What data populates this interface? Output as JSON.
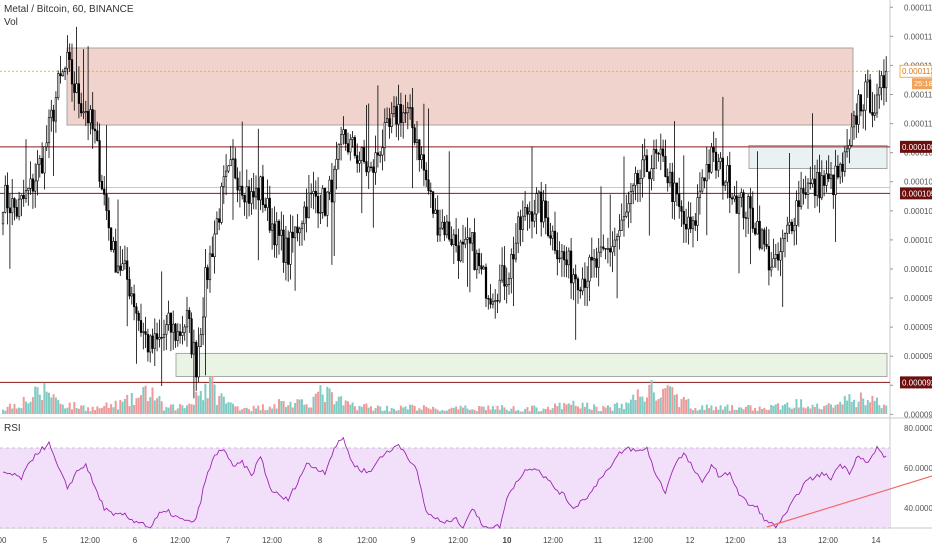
{
  "header": {
    "title": "Metal / Bitcoin, 60, BINANCE",
    "vol_label": "Vol"
  },
  "rsi": {
    "label": "RSI"
  },
  "colors": {
    "up": "#26a69a",
    "down": "#ef5350",
    "candle": "#000000",
    "vol_up": "#80cbc4",
    "vol_down": "#ef9a9a",
    "supply_zone": "#efcbc4",
    "demand_zone": "#e6f2e1",
    "level_line": "#8b1a1a",
    "level_tag_bg": "#6b0f0f",
    "price_line": "#ff9800",
    "price_tag_bg": "#f0a35c",
    "rsi_band": "#f2e0fb",
    "rsi_line": "#9c27b0",
    "trendline": "#f06b6b",
    "target_box": "#e6eef0"
  },
  "chart_data": [
    {
      "type": "candlestick",
      "title": "Metal / Bitcoin, 60, BINANCE",
      "ylim": [
        8.975e-05,
        0.0001185
      ],
      "yticks": [
        "0.0001180",
        "0.0001160",
        "0.0001140",
        "0.0001120",
        "0.0001100",
        "0.0001080",
        "0.0001060",
        "0.0001040",
        "0.0001020",
        "0.0001000",
        "0.0000980",
        "0.0000960",
        "0.0000940",
        "0.0000920",
        "0.0000900"
      ],
      "xticks": [
        "00",
        "5",
        "12:00",
        "6",
        "12:00",
        "7",
        "12:00",
        "8",
        "12:00",
        "9",
        "12:00",
        "10",
        "12:00",
        "11",
        "12:00",
        "12",
        "12:00",
        "13",
        "12:00",
        "14"
      ],
      "last_price": "0.0001136",
      "countdown": "25:18",
      "levels": [
        {
          "label": "0.0001084",
          "value": 0.0001084
        },
        {
          "label": "0.0001052",
          "value": 0.0001052
        },
        {
          "label": "0.0000922",
          "value": 9.22e-05
        }
      ],
      "zones": [
        {
          "name": "supply",
          "from": 0.0001099,
          "to": 0.0001152
        },
        {
          "name": "demand",
          "from": 9.26e-05,
          "to": 9.42e-05
        },
        {
          "name": "target",
          "from": 0.0001069,
          "to": 0.0001085
        }
      ],
      "close_anchors": [
        [
          0,
          0.000105
        ],
        [
          6,
          0.000104
        ],
        [
          12,
          0.0001055
        ],
        [
          18,
          0.000108
        ],
        [
          24,
          0.0001125
        ],
        [
          28,
          0.000114
        ],
        [
          32,
          0.000112
        ],
        [
          36,
          0.000111
        ],
        [
          40,
          0.000109
        ],
        [
          44,
          0.000105
        ],
        [
          48,
          0.000101
        ],
        [
          52,
          0.0001
        ],
        [
          56,
          9.85e-05
        ],
        [
          60,
          9.6e-05
        ],
        [
          64,
          9.45e-05
        ],
        [
          68,
          9.5e-05
        ],
        [
          72,
          9.6e-05
        ],
        [
          76,
          9.55e-05
        ],
        [
          80,
          9.65e-05
        ],
        [
          84,
          9.35e-05
        ],
        [
          88,
          9.9e-05
        ],
        [
          92,
          0.0001025
        ],
        [
          96,
          0.0001055
        ],
        [
          100,
          0.000107
        ],
        [
          104,
          0.000106
        ],
        [
          108,
          0.0001048
        ],
        [
          112,
          0.0001055
        ],
        [
          116,
          0.0001035
        ],
        [
          120,
          0.000102
        ],
        [
          124,
          0.000101
        ],
        [
          128,
          0.000103
        ],
        [
          132,
          0.0001045
        ],
        [
          136,
          0.000105
        ],
        [
          140,
          0.0001045
        ],
        [
          144,
          0.000106
        ],
        [
          148,
          0.000109
        ],
        [
          152,
          0.0001082
        ],
        [
          156,
          0.0001075
        ],
        [
          160,
          0.0001065
        ],
        [
          164,
          0.0001085
        ],
        [
          168,
          0.0001095
        ],
        [
          172,
          0.000111
        ],
        [
          176,
          0.0001105
        ],
        [
          180,
          0.000109
        ],
        [
          184,
          0.000106
        ],
        [
          188,
          0.0001035
        ],
        [
          192,
          0.000103
        ],
        [
          196,
          0.000102
        ],
        [
          200,
          0.000101
        ],
        [
          204,
          0.0001015
        ],
        [
          208,
          9.95e-05
        ],
        [
          212,
          9.85e-05
        ],
        [
          216,
          9.9e-05
        ],
        [
          220,
          0.0001
        ],
        [
          224,
          0.0001025
        ],
        [
          228,
          0.000104
        ],
        [
          232,
          0.0001045
        ],
        [
          236,
          0.0001035
        ],
        [
          240,
          0.000102
        ],
        [
          244,
          0.0001005
        ],
        [
          248,
          9.98e-05
        ],
        [
          252,
          9.95e-05
        ],
        [
          256,
          0.0001
        ],
        [
          260,
          0.0001005
        ],
        [
          264,
          0.0001015
        ],
        [
          268,
          0.0001025
        ],
        [
          272,
          0.000104
        ],
        [
          276,
          0.000106
        ],
        [
          280,
          0.000107
        ],
        [
          284,
          0.0001075
        ],
        [
          288,
          0.000107
        ],
        [
          292,
          0.000105
        ],
        [
          296,
          0.000103
        ],
        [
          300,
          0.0001025
        ],
        [
          304,
          0.0001065
        ],
        [
          308,
          0.0001075
        ],
        [
          312,
          0.0001068
        ],
        [
          316,
          0.000106
        ],
        [
          320,
          0.0001045
        ],
        [
          324,
          0.000104
        ],
        [
          328,
          0.000103
        ],
        [
          332,
          0.000101
        ],
        [
          336,
          0.0001
        ],
        [
          340,
          0.000102
        ],
        [
          344,
          0.000104
        ],
        [
          348,
          0.0001058
        ],
        [
          352,
          0.0001055
        ],
        [
          356,
          0.000106
        ],
        [
          360,
          0.0001058
        ],
        [
          364,
          0.0001065
        ],
        [
          368,
          0.000108
        ],
        [
          372,
          0.0001115
        ],
        [
          376,
          0.000112
        ],
        [
          380,
          0.000111
        ],
        [
          384,
          0.0001136
        ]
      ],
      "volume_anchors": [
        [
          0,
          0.2
        ],
        [
          10,
          0.5
        ],
        [
          20,
          0.9
        ],
        [
          24,
          0.45
        ],
        [
          30,
          0.3
        ],
        [
          40,
          0.2
        ],
        [
          50,
          0.35
        ],
        [
          60,
          0.6
        ],
        [
          64,
          0.9
        ],
        [
          70,
          0.2
        ],
        [
          80,
          0.3
        ],
        [
          84,
          0.75
        ],
        [
          90,
          1.0
        ],
        [
          96,
          0.5
        ],
        [
          100,
          0.3
        ],
        [
          110,
          0.2
        ],
        [
          120,
          0.4
        ],
        [
          130,
          0.35
        ],
        [
          140,
          0.8
        ],
        [
          144,
          0.5
        ],
        [
          150,
          0.35
        ],
        [
          160,
          0.25
        ],
        [
          170,
          0.2
        ],
        [
          180,
          0.25
        ],
        [
          190,
          0.15
        ],
        [
          200,
          0.2
        ],
        [
          210,
          0.25
        ],
        [
          220,
          0.2
        ],
        [
          230,
          0.2
        ],
        [
          240,
          0.25
        ],
        [
          250,
          0.35
        ],
        [
          260,
          0.2
        ],
        [
          270,
          0.3
        ],
        [
          276,
          0.7
        ],
        [
          280,
          0.85
        ],
        [
          290,
          0.7
        ],
        [
          300,
          0.3
        ],
        [
          310,
          0.2
        ],
        [
          320,
          0.25
        ],
        [
          330,
          0.2
        ],
        [
          340,
          0.3
        ],
        [
          350,
          0.45
        ],
        [
          360,
          0.35
        ],
        [
          370,
          0.5
        ],
        [
          376,
          0.6
        ],
        [
          384,
          0.25
        ]
      ],
      "bars": 385,
      "seed": 7
    },
    {
      "type": "line",
      "title": "RSI",
      "ylim": [
        30,
        85
      ],
      "yticks": [
        "80.0000",
        "60.0000",
        "40.0000"
      ],
      "band": [
        30,
        70
      ],
      "rsi_anchors": [
        [
          0,
          58
        ],
        [
          8,
          55
        ],
        [
          14,
          67
        ],
        [
          20,
          72
        ],
        [
          24,
          60
        ],
        [
          28,
          50
        ],
        [
          32,
          58
        ],
        [
          36,
          62
        ],
        [
          40,
          50
        ],
        [
          44,
          40
        ],
        [
          48,
          36
        ],
        [
          52,
          37
        ],
        [
          56,
          34
        ],
        [
          60,
          33
        ],
        [
          64,
          30
        ],
        [
          68,
          37
        ],
        [
          72,
          38
        ],
        [
          76,
          35
        ],
        [
          80,
          33
        ],
        [
          84,
          34
        ],
        [
          88,
          54
        ],
        [
          92,
          66
        ],
        [
          96,
          70
        ],
        [
          100,
          60
        ],
        [
          104,
          63
        ],
        [
          108,
          56
        ],
        [
          112,
          66
        ],
        [
          116,
          50
        ],
        [
          120,
          46
        ],
        [
          124,
          44
        ],
        [
          128,
          53
        ],
        [
          132,
          62
        ],
        [
          136,
          60
        ],
        [
          140,
          58
        ],
        [
          144,
          70
        ],
        [
          148,
          75
        ],
        [
          152,
          62
        ],
        [
          156,
          59
        ],
        [
          160,
          58
        ],
        [
          164,
          66
        ],
        [
          168,
          68
        ],
        [
          172,
          72
        ],
        [
          176,
          66
        ],
        [
          180,
          58
        ],
        [
          184,
          38
        ],
        [
          188,
          35
        ],
        [
          192,
          32
        ],
        [
          196,
          35
        ],
        [
          200,
          31
        ],
        [
          204,
          40
        ],
        [
          208,
          32
        ],
        [
          212,
          30
        ],
        [
          216,
          31
        ],
        [
          220,
          48
        ],
        [
          224,
          54
        ],
        [
          228,
          60
        ],
        [
          232,
          60
        ],
        [
          236,
          55
        ],
        [
          240,
          50
        ],
        [
          244,
          46
        ],
        [
          248,
          40
        ],
        [
          252,
          44
        ],
        [
          256,
          48
        ],
        [
          260,
          56
        ],
        [
          264,
          60
        ],
        [
          268,
          67
        ],
        [
          272,
          70
        ],
        [
          276,
          68
        ],
        [
          280,
          70
        ],
        [
          284,
          56
        ],
        [
          288,
          48
        ],
        [
          292,
          62
        ],
        [
          296,
          67
        ],
        [
          300,
          60
        ],
        [
          304,
          52
        ],
        [
          308,
          62
        ],
        [
          312,
          55
        ],
        [
          316,
          58
        ],
        [
          320,
          47
        ],
        [
          324,
          42
        ],
        [
          328,
          40
        ],
        [
          332,
          33
        ],
        [
          336,
          31
        ],
        [
          340,
          36
        ],
        [
          344,
          44
        ],
        [
          348,
          52
        ],
        [
          352,
          55
        ],
        [
          356,
          57
        ],
        [
          360,
          55
        ],
        [
          364,
          62
        ],
        [
          368,
          58
        ],
        [
          372,
          67
        ],
        [
          376,
          62
        ],
        [
          380,
          70
        ],
        [
          384,
          65
        ]
      ],
      "trendline": [
        [
          332,
          30.5
        ],
        [
          400,
          70
        ]
      ]
    }
  ]
}
